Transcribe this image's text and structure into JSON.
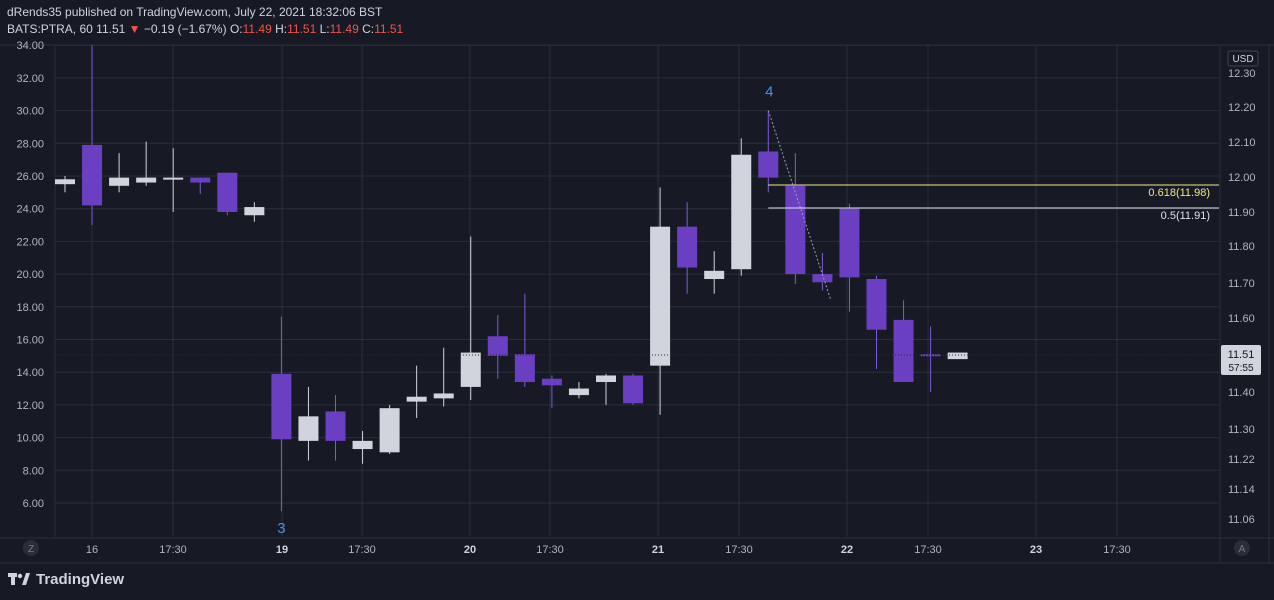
{
  "header": {
    "published": "dRends35 published on TradingView.com, July 22, 2021 18:32:06 BST",
    "symbol": "BATS:PTRA, 60",
    "price": "11.51",
    "arrow": "▼",
    "change": "−0.19 (−1.67%)",
    "o_label": "O:",
    "o_value": "11.49",
    "h_label": "H:",
    "h_value": "11.51",
    "l_label": "L:",
    "l_value": "11.49",
    "c_label": "C:",
    "c_value": "11.51"
  },
  "footer": {
    "brand": "TradingView"
  },
  "colors": {
    "background": "#171a25",
    "grid": "#2a2e39",
    "up_candle": "#d1d4dc",
    "down_candle": "#6a3fc1",
    "fib_0618": "#f0e68c",
    "fib_05": "#e0e3eb",
    "wave_label": "#4a90e2",
    "negative": "#ef5350"
  },
  "chart_data": {
    "type": "candlestick",
    "right_axis_currency": "USD",
    "right_axis_ticks": [
      "12.30",
      "12.20",
      "12.10",
      "12.00",
      "11.90",
      "11.80",
      "11.70",
      "11.60",
      "11.50",
      "11.40",
      "11.30",
      "11.22",
      "11.14",
      "11.06"
    ],
    "left_axis_ticks": [
      "34.00",
      "32.00",
      "30.00",
      "28.00",
      "26.00",
      "24.00",
      "22.00",
      "20.00",
      "18.00",
      "16.00",
      "14.00",
      "12.00",
      "10.00",
      "8.00",
      "6.00"
    ],
    "x_ticks": [
      "16",
      "17:30",
      "19",
      "17:30",
      "20",
      "17:30",
      "21",
      "17:30",
      "22",
      "17:30",
      "23",
      "17:30"
    ],
    "x_bold_ticks": [
      "19",
      "20",
      "21",
      "22",
      "23"
    ],
    "axis_corner_left": "Z",
    "axis_corner_right": "A",
    "last_price_label": "11.51",
    "countdown_label": "57:55",
    "candles": [
      {
        "o": 25.5,
        "h": 26.0,
        "l": 25.0,
        "c": 25.8
      },
      {
        "o": 27.9,
        "h": 34.0,
        "l": 23.0,
        "c": 24.2
      },
      {
        "o": 25.4,
        "h": 27.4,
        "l": 25.0,
        "c": 25.9
      },
      {
        "o": 25.6,
        "h": 28.1,
        "l": 25.4,
        "c": 25.9
      },
      {
        "o": 25.8,
        "h": 27.7,
        "l": 23.8,
        "c": 25.9
      },
      {
        "o": 25.9,
        "h": 25.9,
        "l": 24.9,
        "c": 25.6
      },
      {
        "o": 26.2,
        "h": 26.2,
        "l": 23.6,
        "c": 23.8
      },
      {
        "o": 23.6,
        "h": 24.4,
        "l": 23.2,
        "c": 24.1
      },
      {
        "o": 13.9,
        "h": 17.4,
        "l": 5.5,
        "c": 9.9
      },
      {
        "o": 9.8,
        "h": 13.1,
        "l": 8.6,
        "c": 11.3
      },
      {
        "o": 11.6,
        "h": 12.6,
        "l": 8.6,
        "c": 9.8
      },
      {
        "o": 9.3,
        "h": 10.4,
        "l": 8.4,
        "c": 9.8
      },
      {
        "o": 9.1,
        "h": 12.0,
        "l": 9.0,
        "c": 11.8
      },
      {
        "o": 12.2,
        "h": 14.4,
        "l": 11.2,
        "c": 12.5
      },
      {
        "o": 12.4,
        "h": 15.5,
        "l": 11.9,
        "c": 12.7
      },
      {
        "o": 13.1,
        "h": 22.3,
        "l": 12.3,
        "c": 15.2
      },
      {
        "o": 16.2,
        "h": 17.5,
        "l": 13.6,
        "c": 15.0
      },
      {
        "o": 15.1,
        "h": 18.8,
        "l": 13.1,
        "c": 13.4
      },
      {
        "o": 13.6,
        "h": 13.8,
        "l": 11.8,
        "c": 13.2
      },
      {
        "o": 12.6,
        "h": 13.4,
        "l": 12.4,
        "c": 13.0
      },
      {
        "o": 13.4,
        "h": 13.9,
        "l": 12.0,
        "c": 13.8
      },
      {
        "o": 13.8,
        "h": 13.9,
        "l": 12.0,
        "c": 12.1
      },
      {
        "o": 14.4,
        "h": 25.3,
        "l": 11.4,
        "c": 22.9
      },
      {
        "o": 22.9,
        "h": 24.4,
        "l": 18.8,
        "c": 20.4
      },
      {
        "o": 19.7,
        "h": 21.4,
        "l": 18.8,
        "c": 20.2
      },
      {
        "o": 20.3,
        "h": 28.3,
        "l": 19.9,
        "c": 27.3
      },
      {
        "o": 27.5,
        "h": 30.0,
        "l": 25.0,
        "c": 25.9
      },
      {
        "o": 25.4,
        "h": 27.4,
        "l": 19.4,
        "c": 20.0
      },
      {
        "o": 20.0,
        "h": 21.3,
        "l": 19.0,
        "c": 19.5
      },
      {
        "o": 24.0,
        "h": 24.3,
        "l": 17.7,
        "c": 19.8
      },
      {
        "o": 19.7,
        "h": 19.9,
        "l": 14.2,
        "c": 16.6
      },
      {
        "o": 17.2,
        "h": 18.4,
        "l": 13.4,
        "c": 13.4
      },
      {
        "o": 15.1,
        "h": 16.8,
        "l": 12.8,
        "c": 15.0
      },
      {
        "o": 14.8,
        "h": 15.2,
        "l": 14.8,
        "c": 15.2
      }
    ],
    "fib_levels": [
      {
        "label": "0.618(11.98)",
        "price": 11.98
      },
      {
        "label": "0.5(11.91)",
        "price": 11.91
      }
    ],
    "wave_labels": [
      {
        "label": "3",
        "candle_index": 8
      },
      {
        "label": "4",
        "candle_index": 26
      }
    ]
  }
}
